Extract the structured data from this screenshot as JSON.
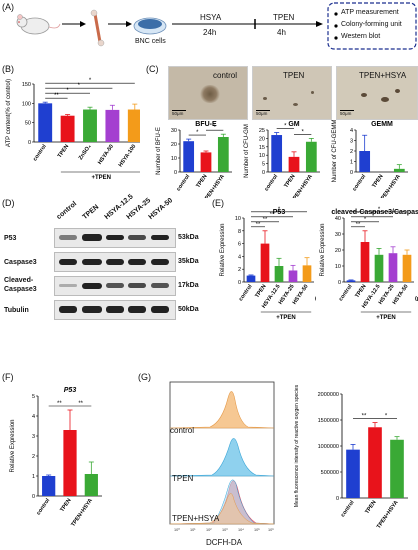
{
  "panels": {
    "A": "(A)",
    "B": "(B)",
    "C": "(C)",
    "D": "(D)",
    "E": "(E)",
    "F": "(F)",
    "G": "(G)"
  },
  "panelA": {
    "cells_label": "BNC cells",
    "step1": "HSYA",
    "step1_time": "24h",
    "step2": "TPEN",
    "step2_time": "4h",
    "outcomes": [
      "ATP measurement",
      "Colony-forming unit",
      "Western blot"
    ]
  },
  "panelC": {
    "images": [
      "control",
      "TPEN",
      "TPEN+HSYA"
    ],
    "scalebar": "50μm"
  },
  "panelD": {
    "lanes": [
      "control",
      "TPEN",
      "HSYA-12.5",
      "HSYA-25",
      "HSYA-50"
    ],
    "rows": [
      {
        "label": "P53",
        "kda": "53kDa"
      },
      {
        "label": "Caspase3",
        "kda": "35kDa"
      },
      {
        "label": "Cleaved-\nCaspase3",
        "kda": "17kDa"
      },
      {
        "label": "Tubulin",
        "kda": "50kDa"
      }
    ]
  },
  "panelG": {
    "flow_labels": [
      "control",
      "TPEN",
      "TPEN+HSYA"
    ],
    "flow_xlabel": "DCFH-DA",
    "flow_ticks": [
      "10⁰",
      "10¹",
      "10²",
      "10³",
      "10⁴",
      "10⁵",
      "10⁶"
    ]
  },
  "chart_data": [
    {
      "id": "B",
      "type": "bar",
      "ylabel": "ATP content(% of control)",
      "ylim": [
        0,
        150
      ],
      "yticks": [
        0,
        50,
        100,
        150
      ],
      "categories": [
        "control",
        "TPEN",
        "ZnSO₄",
        "HSYA-50",
        "HSYA-100"
      ],
      "values": [
        100,
        68,
        84,
        83,
        84
      ],
      "errors": [
        3,
        3,
        6,
        12,
        14
      ],
      "colors": [
        "#1f3fd0",
        "#e8131b",
        "#3aa935",
        "#a43fd0",
        "#f39b1a"
      ],
      "unit": "(μg/ml)",
      "group_label": "+TPEN",
      "sig": [
        "**",
        "*",
        "*",
        "*"
      ]
    },
    {
      "id": "C1",
      "type": "bar",
      "title": "BFU-E",
      "ylabel": "Number of BFU-E",
      "ylim": [
        0,
        30
      ],
      "yticks": [
        0,
        10,
        20,
        30
      ],
      "categories": [
        "control",
        "TPEN",
        "TPEN+HSYA"
      ],
      "values": [
        22,
        14,
        25
      ],
      "errors": [
        1.5,
        1,
        2
      ],
      "colors": [
        "#1f3fd0",
        "#e8131b",
        "#3aa935"
      ],
      "sig": [
        "*",
        "*"
      ]
    },
    {
      "id": "C2",
      "type": "bar",
      "title": "GM",
      "ylabel": "Number of CFU-GM",
      "ylim": [
        0,
        25
      ],
      "yticks": [
        0,
        5,
        10,
        15,
        20,
        25
      ],
      "categories": [
        "control",
        "TPEN",
        "TPEN+HSYA"
      ],
      "values": [
        22,
        9,
        18
      ],
      "errors": [
        1.5,
        3,
        2
      ],
      "colors": [
        "#1f3fd0",
        "#e8131b",
        "#3aa935"
      ],
      "sig": [
        "*",
        "*"
      ]
    },
    {
      "id": "C3",
      "type": "bar",
      "title": "GEMM",
      "ylabel": "Number of CFU-GEMM",
      "ylim": [
        0,
        4
      ],
      "yticks": [
        0,
        1,
        2,
        3,
        4
      ],
      "categories": [
        "control",
        "TPEN",
        "TPEN+HSYA"
      ],
      "values": [
        2.0,
        0,
        0.3
      ],
      "errors": [
        1.5,
        0,
        0.4
      ],
      "colors": [
        "#1f3fd0",
        "#e8131b",
        "#3aa935"
      ],
      "sig": []
    },
    {
      "id": "E1",
      "type": "bar",
      "title": "P53",
      "ylabel": "Relative Expression",
      "ylim": [
        0,
        10
      ],
      "yticks": [
        0,
        2,
        4,
        6,
        8,
        10
      ],
      "categories": [
        "control",
        "TPEN",
        "HSYA-12.5",
        "HSYA-25",
        "HSYA-50"
      ],
      "values": [
        1,
        6,
        2.5,
        1.8,
        2.6
      ],
      "errors": [
        0.1,
        2,
        1.2,
        0.8,
        1.2
      ],
      "colors": [
        "#1f3fd0",
        "#e8131b",
        "#3aa935",
        "#a43fd0",
        "#f39b1a"
      ],
      "unit": "(μg/ml)",
      "group_label": "+TPEN",
      "sig": [
        "**",
        "**",
        "**",
        "*"
      ]
    },
    {
      "id": "E2",
      "type": "bar",
      "title": "cleaved-Caspase3/Caspase3",
      "ylabel": "Relative Expression",
      "ylim": [
        0,
        40
      ],
      "yticks": [
        0,
        10,
        20,
        30,
        40
      ],
      "categories": [
        "control",
        "TPEN",
        "HSYA-12.5",
        "HSYA-25",
        "HSYA-50"
      ],
      "values": [
        1,
        25,
        17,
        18,
        17
      ],
      "errors": [
        0.3,
        7,
        4,
        4,
        3
      ],
      "colors": [
        "#1f3fd0",
        "#e8131b",
        "#3aa935",
        "#a43fd0",
        "#f39b1a"
      ],
      "unit": "(μg/ml)",
      "group_label": "+TPEN",
      "sig": [
        "**",
        "*",
        "*",
        "*"
      ]
    },
    {
      "id": "F",
      "type": "bar",
      "title": "P53",
      "ylabel": "Relative Expression",
      "ylim": [
        0,
        5
      ],
      "yticks": [
        0,
        1,
        2,
        3,
        4,
        5
      ],
      "categories": [
        "control",
        "TPEN",
        "TPEN+HSYA"
      ],
      "values": [
        1.0,
        3.3,
        1.1
      ],
      "errors": [
        0.05,
        1.0,
        0.6
      ],
      "colors": [
        "#1f3fd0",
        "#e8131b",
        "#3aa935"
      ],
      "sig": [
        "**",
        "**"
      ]
    },
    {
      "id": "G2",
      "type": "bar",
      "ylabel": "Mean fluorescence intensity of reactive oxygen species",
      "ylim": [
        0,
        2000000
      ],
      "yticks": [
        0,
        500000,
        1000000,
        1500000,
        2000000
      ],
      "categories": [
        "control",
        "TPEN",
        "TPEN+HSYA"
      ],
      "values": [
        930000,
        1360000,
        1120000
      ],
      "errors": [
        100000,
        90000,
        60000
      ],
      "colors": [
        "#1f3fd0",
        "#e8131b",
        "#3aa935"
      ],
      "sig": [
        "**",
        "*"
      ]
    }
  ]
}
